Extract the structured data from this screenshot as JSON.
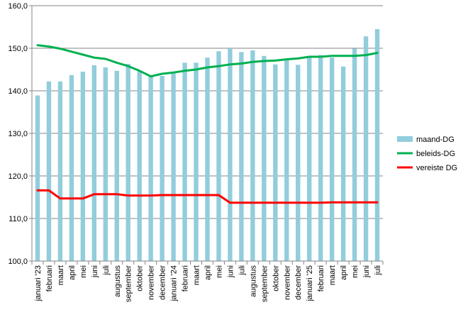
{
  "chart_data": {
    "type": "bar",
    "categories": [
      "januari '23",
      "februari",
      "maart",
      "april",
      "mei",
      "juni",
      "juli",
      "augustus",
      "september",
      "oktober",
      "november",
      "december",
      "januari '24",
      "februari",
      "maart",
      "april",
      "mei",
      "juni",
      "juli",
      "augustus",
      "september",
      "oktober",
      "november",
      "december",
      "januari '25",
      "februari",
      "maart",
      "april",
      "mei",
      "juni",
      "juli"
    ],
    "ylim": [
      100,
      160
    ],
    "yticks": [
      "100,0",
      "110,0",
      "120,0",
      "130,0",
      "140,0",
      "150,0",
      "160,0"
    ],
    "grid": true,
    "legend_position": "right",
    "series": [
      {
        "name": "maand-DG",
        "kind": "bar",
        "color": "#92cddc",
        "values": [
          138.9,
          142.2,
          142.2,
          143.7,
          144.5,
          146.0,
          145.5,
          144.7,
          146.3,
          144.7,
          143.4,
          143.5,
          144.1,
          146.6,
          146.6,
          147.8,
          149.3,
          150.0,
          149.1,
          149.5,
          148.2,
          146.2,
          147.5,
          146.1,
          148.1,
          148.4,
          147.8,
          145.7,
          149.9,
          152.8,
          154.5
        ]
      },
      {
        "name": "beleids-DG",
        "kind": "line",
        "color": "#00b050",
        "values": [
          150.7,
          150.4,
          149.9,
          149.2,
          148.5,
          147.8,
          147.5,
          146.6,
          145.8,
          144.7,
          143.4,
          144.0,
          144.3,
          144.7,
          145.0,
          145.5,
          145.8,
          146.2,
          146.4,
          146.8,
          147.0,
          147.1,
          147.4,
          147.6,
          148.0,
          148.0,
          148.2,
          148.2,
          148.2,
          148.4,
          148.9
        ]
      },
      {
        "name": "vereiste DG",
        "kind": "line",
        "color": "#ff0000",
        "values": [
          116.6,
          116.6,
          114.7,
          114.7,
          114.7,
          115.7,
          115.7,
          115.7,
          115.4,
          115.4,
          115.4,
          115.5,
          115.5,
          115.5,
          115.5,
          115.5,
          115.5,
          113.7,
          113.7,
          113.7,
          113.7,
          113.7,
          113.7,
          113.7,
          113.7,
          113.7,
          113.8,
          113.8,
          113.8,
          113.8,
          113.8
        ]
      }
    ]
  }
}
